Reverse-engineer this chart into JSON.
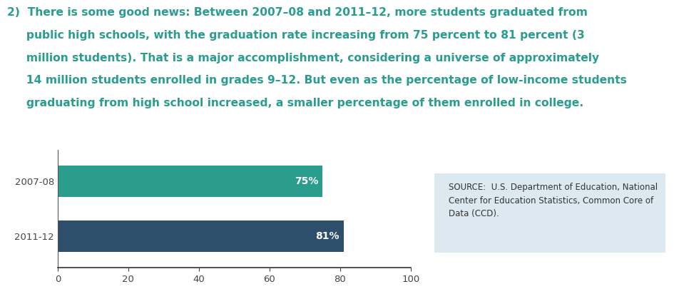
{
  "title_lines": [
    "2)  There is some good news: Between 2007–08 and 2011–12, more students graduated from",
    "     public high schools, with the graduation rate increasing from 75 percent to 81 percent (3",
    "     million students). That is a major accomplishment, considering a universe of approximately",
    "     14 million students enrolled in grades 9–12. But even as the percentage of low-income students",
    "     graduating from high school increased, a smaller percentage of them enrolled in college."
  ],
  "categories": [
    "2007-08",
    "2011-12"
  ],
  "values": [
    75,
    81
  ],
  "bar_colors": [
    "#2a9d8f",
    "#2d4f6b"
  ],
  "xlim": [
    0,
    100
  ],
  "xticks": [
    0,
    20,
    40,
    60,
    80,
    100
  ],
  "value_labels": [
    "75%",
    "81%"
  ],
  "source_text": "SOURCE:  U.S. Department of Education, National\nCenter for Education Statistics, Common Core of\nData (CCD).",
  "source_box_color": "#dce9f0",
  "bar_label_color": "#ffffff",
  "title_color": "#2a9d8f",
  "axis_label_color": "#444444",
  "background_color": "#ffffff",
  "title_fontsize": 11.2,
  "bar_label_fontsize": 10,
  "source_fontsize": 8.5,
  "tick_fontsize": 9.5,
  "ytick_fontsize": 9.5
}
